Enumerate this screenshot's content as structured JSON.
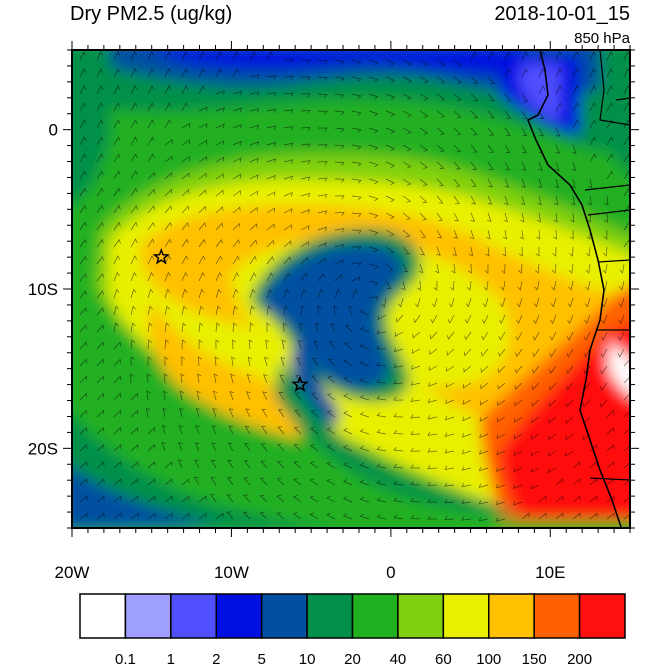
{
  "header": {
    "title": "Dry PM2.5 (ug/kg)",
    "datetime": "2018-10-01_15",
    "level": "850 hPa"
  },
  "axes": {
    "lat_labels": [
      "0",
      "10S",
      "20S"
    ],
    "lon_labels": [
      "20W",
      "10W",
      "0",
      "10E"
    ],
    "lat_values": [
      0,
      -10,
      -20
    ],
    "lon_values": [
      -20,
      -10,
      0,
      10
    ],
    "lon_range": [
      -20,
      15
    ],
    "lat_range": [
      -25,
      5
    ]
  },
  "colorbar": {
    "labels": [
      "0.1",
      "1",
      "2",
      "5",
      "10",
      "20",
      "40",
      "60",
      "100",
      "150",
      "200"
    ],
    "colors": [
      "#ffffff",
      "#a0a0ff",
      "#5050ff",
      "#0010e0",
      "#004fa0",
      "#00904a",
      "#20b020",
      "#80d010",
      "#e8f000",
      "#ffc000",
      "#ff6000",
      "#ff1010"
    ]
  },
  "markers": [
    {
      "name": "star",
      "lon": -14.4,
      "lat": -8.0
    },
    {
      "name": "star",
      "lon": -5.7,
      "lat": -16.0
    }
  ]
}
